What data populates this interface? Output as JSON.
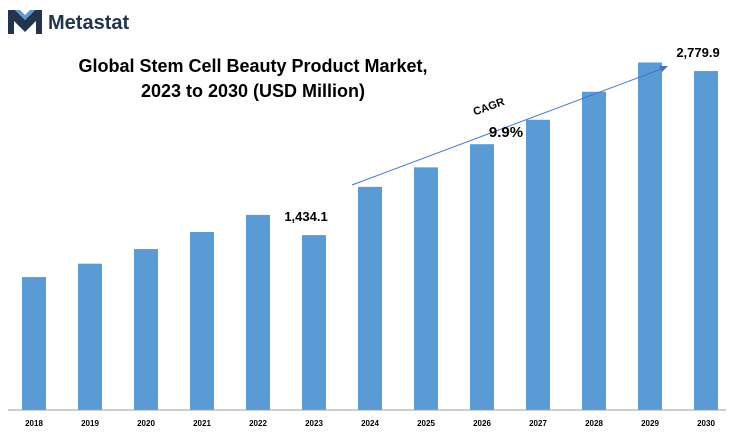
{
  "brand": {
    "name": "Metastat"
  },
  "colors": {
    "bar": "#5b9bd5",
    "arrow": "#4472c4",
    "brand_dark": "#24344c",
    "axis": "#9e9e9e"
  },
  "chart_data": {
    "type": "bar",
    "title": "Global Stem Cell Beauty Product Market,",
    "subtitle": "2023 to 2030 (USD Million)",
    "categories": [
      "2018",
      "2019",
      "2020",
      "2021",
      "2022",
      "2023",
      "2024",
      "2025",
      "2026",
      "2027",
      "2028",
      "2029",
      "2030"
    ],
    "values": [
      1090,
      1200,
      1320,
      1460,
      1600,
      1434.1,
      1830,
      1990,
      2180,
      2380,
      2610,
      2850,
      2779.9
    ],
    "xlabel": "",
    "ylabel": "",
    "ylim": [
      0,
      3100
    ],
    "data_labels": [
      {
        "category": "2023",
        "text": "1,434.1"
      },
      {
        "category": "2030",
        "text": "2,779.9"
      }
    ],
    "annotation": {
      "label": "CAGR",
      "value": "9.9%"
    },
    "grid": false
  }
}
